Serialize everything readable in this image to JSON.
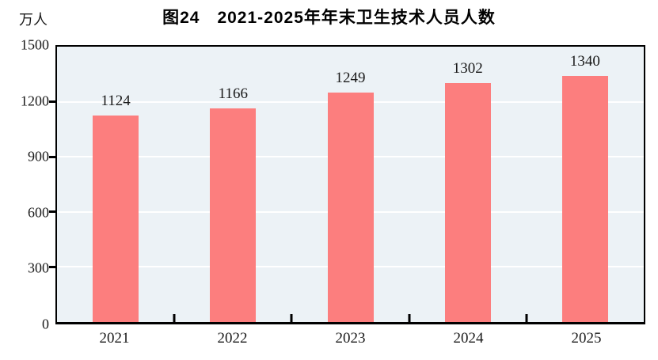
{
  "chart_data": {
    "type": "bar",
    "title": "图24　2021-2025年年末卫生技术人员人数",
    "unit_label": "万人",
    "categories": [
      "2021",
      "2022",
      "2023",
      "2024",
      "2025"
    ],
    "values": [
      1124,
      1166,
      1249,
      1302,
      1340
    ],
    "ylim": [
      0,
      1500
    ],
    "yticks": [
      0,
      300,
      600,
      900,
      1200,
      1500
    ],
    "grid": true,
    "legend_position": "none",
    "colors": {
      "bar_fill": "#fc7e7e",
      "plot_background": "#ecf2f6",
      "gridline": "#ffffff",
      "axis_frame": "#000000",
      "text": "#1a1a1a"
    }
  }
}
